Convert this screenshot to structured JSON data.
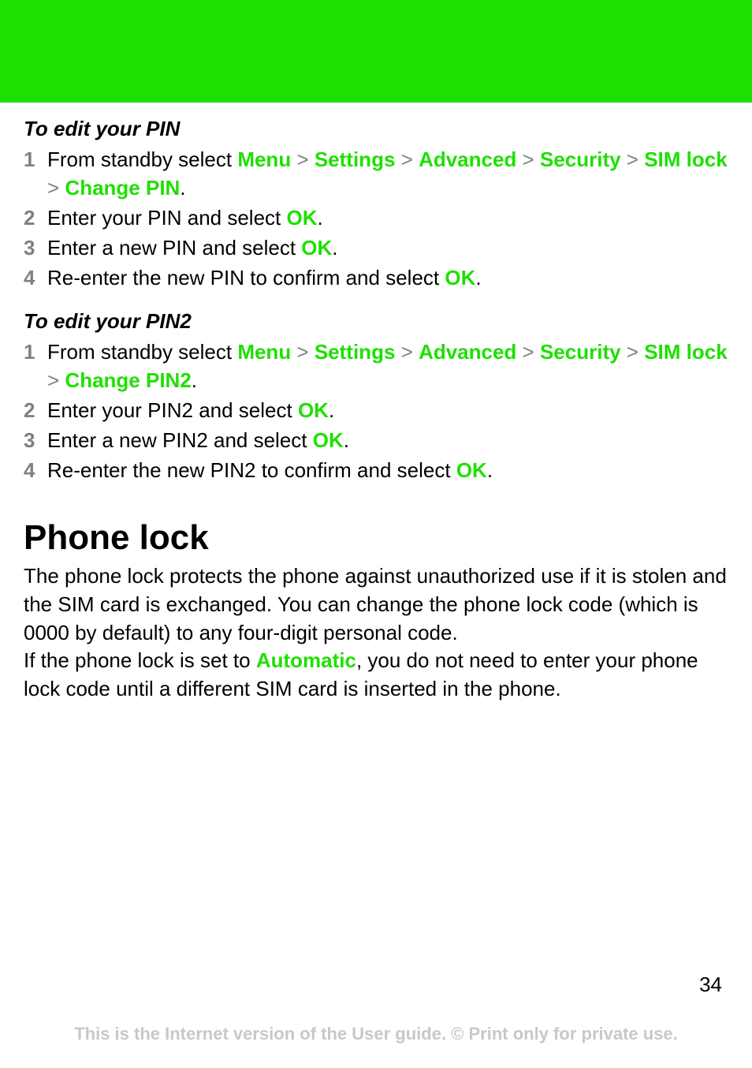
{
  "colors": {
    "header_bg": "#1ee000",
    "accent": "#1ee000",
    "step_num": "#808080",
    "separator": "#808080",
    "body_text": "#000000",
    "footer_text": "#c8c8c8",
    "page_bg": "#ffffff"
  },
  "typography": {
    "body_fontsize": 26,
    "heading_fontsize": 44,
    "footer_fontsize": 22,
    "line_height": 1.38
  },
  "section1": {
    "title": "To edit your PIN",
    "steps": {
      "s1_num": "1",
      "s1_pre": "From standby select ",
      "s1_t1": "Menu",
      "s1_t2": "Settings",
      "s1_t3": "Advanced",
      "s1_t4": "Security",
      "s1_t5": "SIM lock",
      "s1_t6": "Change PIN",
      "s2_num": "2",
      "s2_pre": "Enter your PIN and select ",
      "s2_t1": "OK",
      "s3_num": "3",
      "s3_pre": "Enter a new PIN and select ",
      "s3_t1": "OK",
      "s4_num": "4",
      "s4_pre": "Re-enter the new PIN to confirm and select ",
      "s4_t1": "OK"
    }
  },
  "section2": {
    "title": "To edit your PIN2",
    "steps": {
      "s1_num": "1",
      "s1_pre": "From standby select ",
      "s1_t1": "Menu",
      "s1_t2": "Settings",
      "s1_t3": "Advanced",
      "s1_t4": "Security",
      "s1_t5": "SIM lock",
      "s1_t6": "Change PIN2",
      "s2_num": "2",
      "s2_pre": "Enter your PIN2 and select ",
      "s2_t1": "OK",
      "s3_num": "3",
      "s3_pre": "Enter a new PIN2 and select ",
      "s3_t1": "OK",
      "s4_num": "4",
      "s4_pre": "Re-enter the new PIN2 to confirm and select ",
      "s4_t1": "OK"
    }
  },
  "phone_lock": {
    "heading": "Phone lock",
    "para1": "The phone lock protects the phone against unauthorized use if it is stolen and the SIM card is exchanged. You can change the phone lock code (which is 0000 by default) to any four-digit personal code.",
    "para2_pre": "If the phone lock is set to ",
    "para2_term": "Automatic",
    "para2_post": ", you do not need to enter your phone lock code until a different SIM card is inserted in the phone."
  },
  "separators": {
    "gt": " > "
  },
  "page_number": "34",
  "footer": "This is the Internet version of the User guide. © Print only for private use."
}
